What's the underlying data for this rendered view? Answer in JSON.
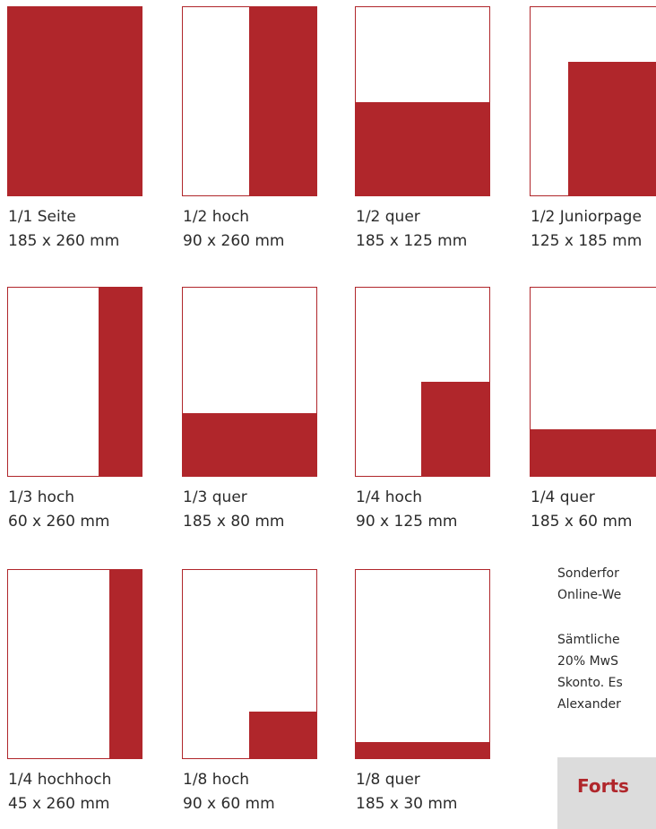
{
  "formats": [
    {
      "name": "1/1 Seite",
      "size": "185 x 260 mm"
    },
    {
      "name": "1/2 hoch",
      "size": "90 x 260 mm"
    },
    {
      "name": "1/2 quer",
      "size": "185 x 125 mm"
    },
    {
      "name": "1/2 Juniorpage",
      "size": "125 x 185 mm"
    },
    {
      "name": "1/3 hoch",
      "size": "60 x 260 mm"
    },
    {
      "name": "1/3 quer",
      "size": "185 x 80 mm"
    },
    {
      "name": "1/4 hoch",
      "size": "90 x 125 mm"
    },
    {
      "name": "1/4 quer",
      "size": "185 x 60 mm"
    },
    {
      "name": "1/4 hochhoch",
      "size": "45 x 260 mm"
    },
    {
      "name": "1/8 hoch",
      "size": "90 x 60 mm"
    },
    {
      "name": "1/8 quer",
      "size": "185 x 30 mm"
    }
  ],
  "sidebar": {
    "lines_1": [
      "Sonderfor",
      "Online-We"
    ],
    "lines_2": [
      "Sämtliche",
      "20% MwS",
      "Skonto. Es",
      "Alexander"
    ],
    "button": "Forts"
  }
}
